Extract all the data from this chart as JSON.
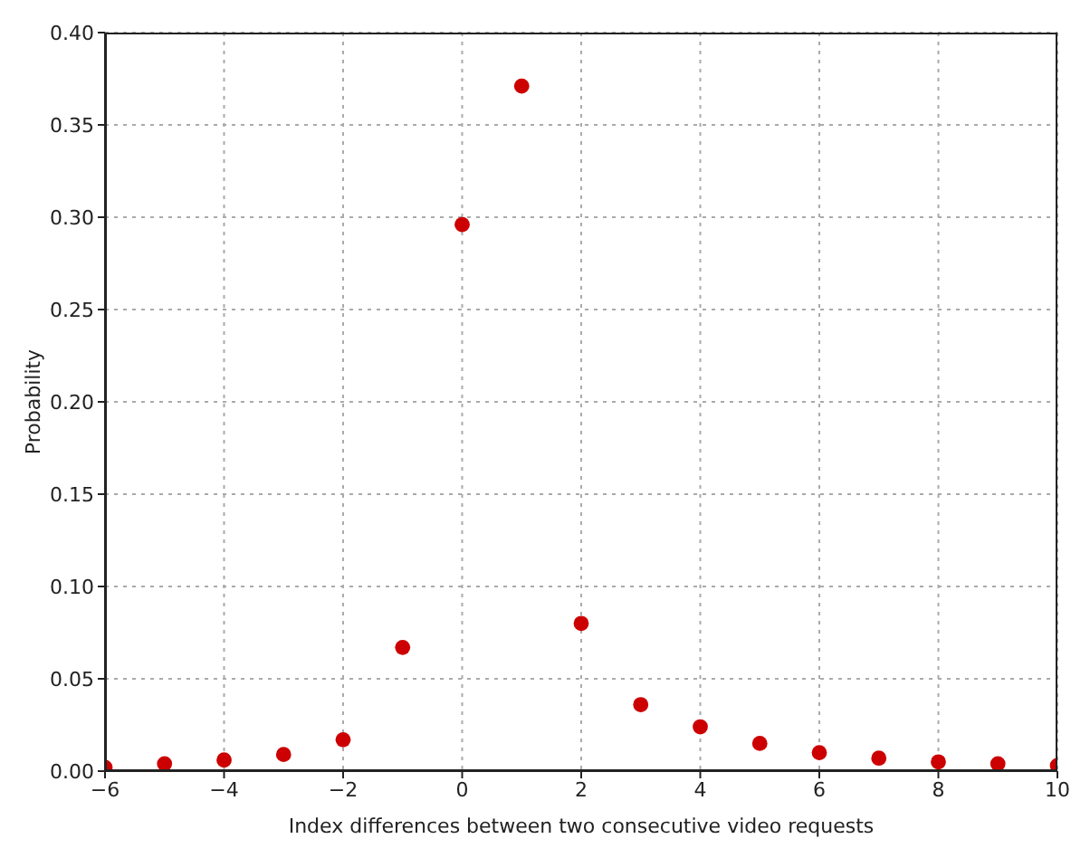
{
  "chart_data": {
    "type": "scatter",
    "xlabel": "Index differences between two consecutive video requests",
    "ylabel": "Probability",
    "x": [
      -6,
      -5,
      -4,
      -3,
      -2,
      -1,
      0,
      1,
      2,
      3,
      4,
      5,
      6,
      7,
      8,
      9,
      10
    ],
    "series": [
      {
        "color": "#cc0000",
        "values": [
          0.002,
          0.004,
          0.006,
          0.009,
          0.017,
          0.067,
          0.296,
          0.371,
          0.08,
          0.036,
          0.024,
          0.015,
          0.01,
          0.007,
          0.005,
          0.004,
          0.003
        ]
      }
    ],
    "xlim": [
      -6,
      10
    ],
    "xticks": [
      {
        "value": -6,
        "label": "−6"
      },
      {
        "value": -4,
        "label": "−4"
      },
      {
        "value": -2,
        "label": "−2"
      },
      0,
      2,
      4,
      6,
      8,
      10
    ],
    "ylim": [
      0,
      0.4
    ],
    "yticks": [
      {
        "value": 0,
        "label": "0.00"
      },
      {
        "value": 0.05,
        "label": "0.05"
      },
      {
        "value": 0.1,
        "label": "0.10"
      },
      {
        "value": 0.15,
        "label": "0.15"
      },
      {
        "value": 0.2,
        "label": "0.20"
      },
      {
        "value": 0.25,
        "label": "0.25"
      },
      {
        "value": 0.3,
        "label": "0.30"
      },
      {
        "value": 0.35,
        "label": "0.35"
      },
      {
        "value": 0.4,
        "label": "0.40"
      }
    ],
    "grid": true,
    "marker": "circle",
    "legend": false
  }
}
